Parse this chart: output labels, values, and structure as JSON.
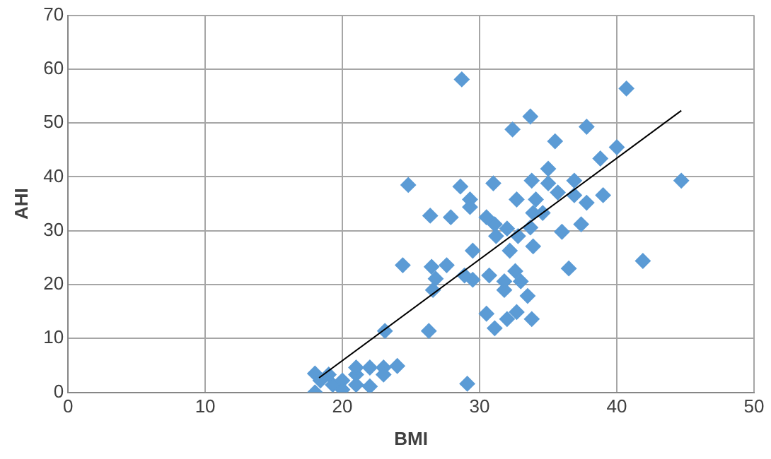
{
  "chart_data": {
    "type": "scatter",
    "xlabel": "BMI",
    "ylabel": "AHI",
    "xlim": [
      0,
      50
    ],
    "xticks": [
      0,
      10,
      20,
      30,
      40,
      50
    ],
    "ylim": [
      0,
      70
    ],
    "yticks": [
      0,
      10,
      20,
      30,
      40,
      50,
      60,
      70
    ],
    "grid": true,
    "legend": false,
    "marker": "diamond",
    "series": [
      {
        "color": "#5b9bd5",
        "x": [
          28.7,
          33.7,
          40.7,
          37.8,
          35.5,
          40.0,
          38.8,
          35.0,
          33.8,
          35.0,
          36.9,
          39.0,
          44.7,
          35.7,
          34.1,
          36.9,
          37.8,
          24.8,
          28.6,
          31.0,
          29.3,
          32.7,
          32.4,
          26.4,
          27.9,
          29.3,
          30.5,
          31.1,
          32.0,
          31.2,
          32.8,
          33.9,
          33.9,
          32.2,
          29.5,
          24.4,
          26.5,
          27.6,
          26.8,
          29.5,
          30.7,
          28.9,
          26.6,
          31.8,
          33.5,
          32.7,
          30.5,
          32.0,
          33.8,
          31.1,
          26.3,
          23.1,
          29.1,
          31.8,
          32.6,
          33.0,
          36.5,
          41.9,
          33.7,
          34.6,
          36.0,
          37.4,
          18.0,
          18.0,
          19.0,
          20.0,
          20.0,
          21.0,
          21.0,
          21.0,
          22.0,
          22.0,
          23.0,
          23.0,
          24.0,
          18.4,
          19.3
        ],
        "values": [
          58.1,
          51.2,
          56.4,
          49.3,
          46.6,
          45.5,
          43.4,
          41.5,
          39.3,
          38.8,
          39.3,
          36.6,
          39.3,
          37.1,
          35.8,
          36.6,
          35.2,
          38.5,
          38.2,
          38.8,
          35.8,
          35.8,
          48.8,
          32.8,
          32.5,
          34.4,
          32.5,
          31.2,
          30.4,
          29.0,
          29.0,
          33.3,
          27.1,
          26.3,
          26.3,
          23.6,
          23.3,
          23.6,
          21.1,
          20.9,
          21.7,
          21.7,
          19.0,
          19.0,
          17.9,
          14.9,
          14.6,
          13.6,
          13.6,
          11.9,
          11.4,
          11.4,
          1.6,
          20.6,
          22.5,
          20.6,
          23.0,
          24.4,
          30.6,
          33.3,
          29.8,
          31.2,
          3.5,
          0,
          3.3,
          2.2,
          0.5,
          3.3,
          1.4,
          4.6,
          4.6,
          1.1,
          4.6,
          3.3,
          4.9,
          2.2,
          1.4
        ]
      },
      {
        "type": "line",
        "color": "#000000",
        "marker": "none",
        "x": [
          18.3,
          44.7
        ],
        "values": [
          2.7,
          52.3
        ]
      }
    ]
  }
}
